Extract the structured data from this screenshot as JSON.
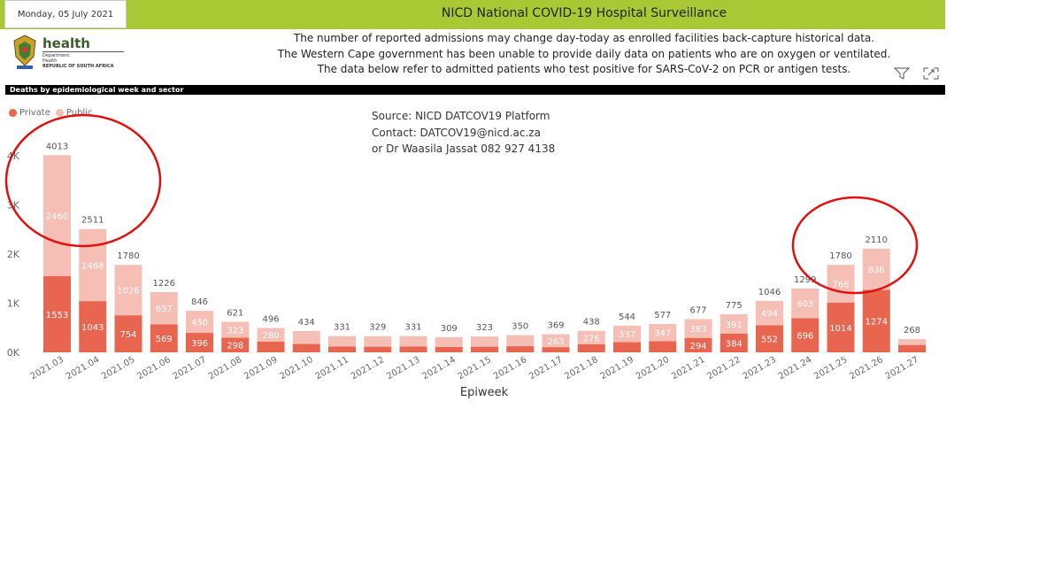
{
  "header": {
    "date": "Monday, 05 July 2021",
    "title": "NICD National COVID-19 Hospital Surveillance",
    "bar_color": "#a8c934"
  },
  "logo": {
    "health": "health",
    "dept_line1": "Department:",
    "dept_line2": "Health",
    "country": "REPUBLIC OF SOUTH AFRICA"
  },
  "notes": [
    "The number of reported admissions may change day-today as enrolled facilities back-capture historical data.",
    "The Western Cape government has been unable to provide daily data on patients who are on oxygen or ventilated.",
    "The data below refer to admitted patients who test positive for SARS-CoV-2 on PCR or antigen tests."
  ],
  "toolbar": {
    "filter_icon": "filter-icon",
    "focus_icon": "focus-mode-icon"
  },
  "section": {
    "title": "Deaths by epidemiological week and sector"
  },
  "legend": [
    {
      "label": "Private",
      "color": "#e8654f"
    },
    {
      "label": "Public",
      "color": "#f5bfb5"
    }
  ],
  "source": {
    "line1": "Source: NICD DATCOV19 Platform",
    "line2": "Contact: DATCOV19@nicd.ac.za",
    "line3": "or Dr Waasila Jassat 082 927 4138"
  },
  "chart_data": {
    "type": "bar",
    "stacked": true,
    "xlabel": "Epiweek",
    "ylabel": "",
    "ylim": [
      0,
      4000
    ],
    "yticks": [
      "0K",
      "1K",
      "2K",
      "3K",
      "4K"
    ],
    "categories": [
      "2021.03",
      "2021.04",
      "2021.05",
      "2021.06",
      "2021.07",
      "2021.08",
      "2021.09",
      "2021.10",
      "2021.11",
      "2021.12",
      "2021.13",
      "2021.14",
      "2021.15",
      "2021.16",
      "2021.17",
      "2021.18",
      "2021.19",
      "2021.20",
      "2021.21",
      "2021.22",
      "2021.23",
      "2021.24",
      "2021.25",
      "2021.26",
      "2021.27"
    ],
    "totals": [
      4013,
      2511,
      1780,
      1226,
      846,
      621,
      496,
      434,
      331,
      329,
      331,
      309,
      323,
      350,
      369,
      438,
      544,
      577,
      677,
      775,
      1046,
      1299,
      1780,
      2110,
      268
    ],
    "series": [
      {
        "name": "Private",
        "color": "#e8654f",
        "values": [
          1553,
          1043,
          754,
          569,
          396,
          298,
          216,
          170,
          120,
          115,
          120,
          110,
          115,
          125,
          106,
          162,
          207,
          230,
          294,
          384,
          552,
          696,
          1014,
          1274,
          150
        ],
        "labels": [
          "1553",
          "1043",
          "754",
          "569",
          "396",
          "298",
          "",
          "",
          "",
          "",
          "",
          "",
          "",
          "",
          "",
          "",
          "",
          "",
          "294",
          "384",
          "552",
          "696",
          "1014",
          "1274",
          ""
        ]
      },
      {
        "name": "Public",
        "color": "#f5bfb5",
        "values": [
          2460,
          1468,
          1026,
          657,
          450,
          323,
          280,
          264,
          211,
          214,
          211,
          199,
          208,
          225,
          263,
          276,
          337,
          347,
          383,
          391,
          494,
          603,
          766,
          836,
          118
        ],
        "labels": [
          "2460",
          "1468",
          "1026",
          "657",
          "450",
          "323",
          "280",
          "",
          "",
          "",
          "",
          "",
          "",
          "",
          "263",
          "276",
          "337",
          "347",
          "383",
          "391",
          "494",
          "603",
          "766",
          "836",
          ""
        ]
      }
    ],
    "annotations": [
      {
        "type": "circle",
        "color": "#e01010",
        "around": [
          "2021.03",
          "2021.04"
        ]
      },
      {
        "type": "circle",
        "color": "#e01010",
        "around": [
          "2021.24",
          "2021.26"
        ]
      }
    ]
  }
}
